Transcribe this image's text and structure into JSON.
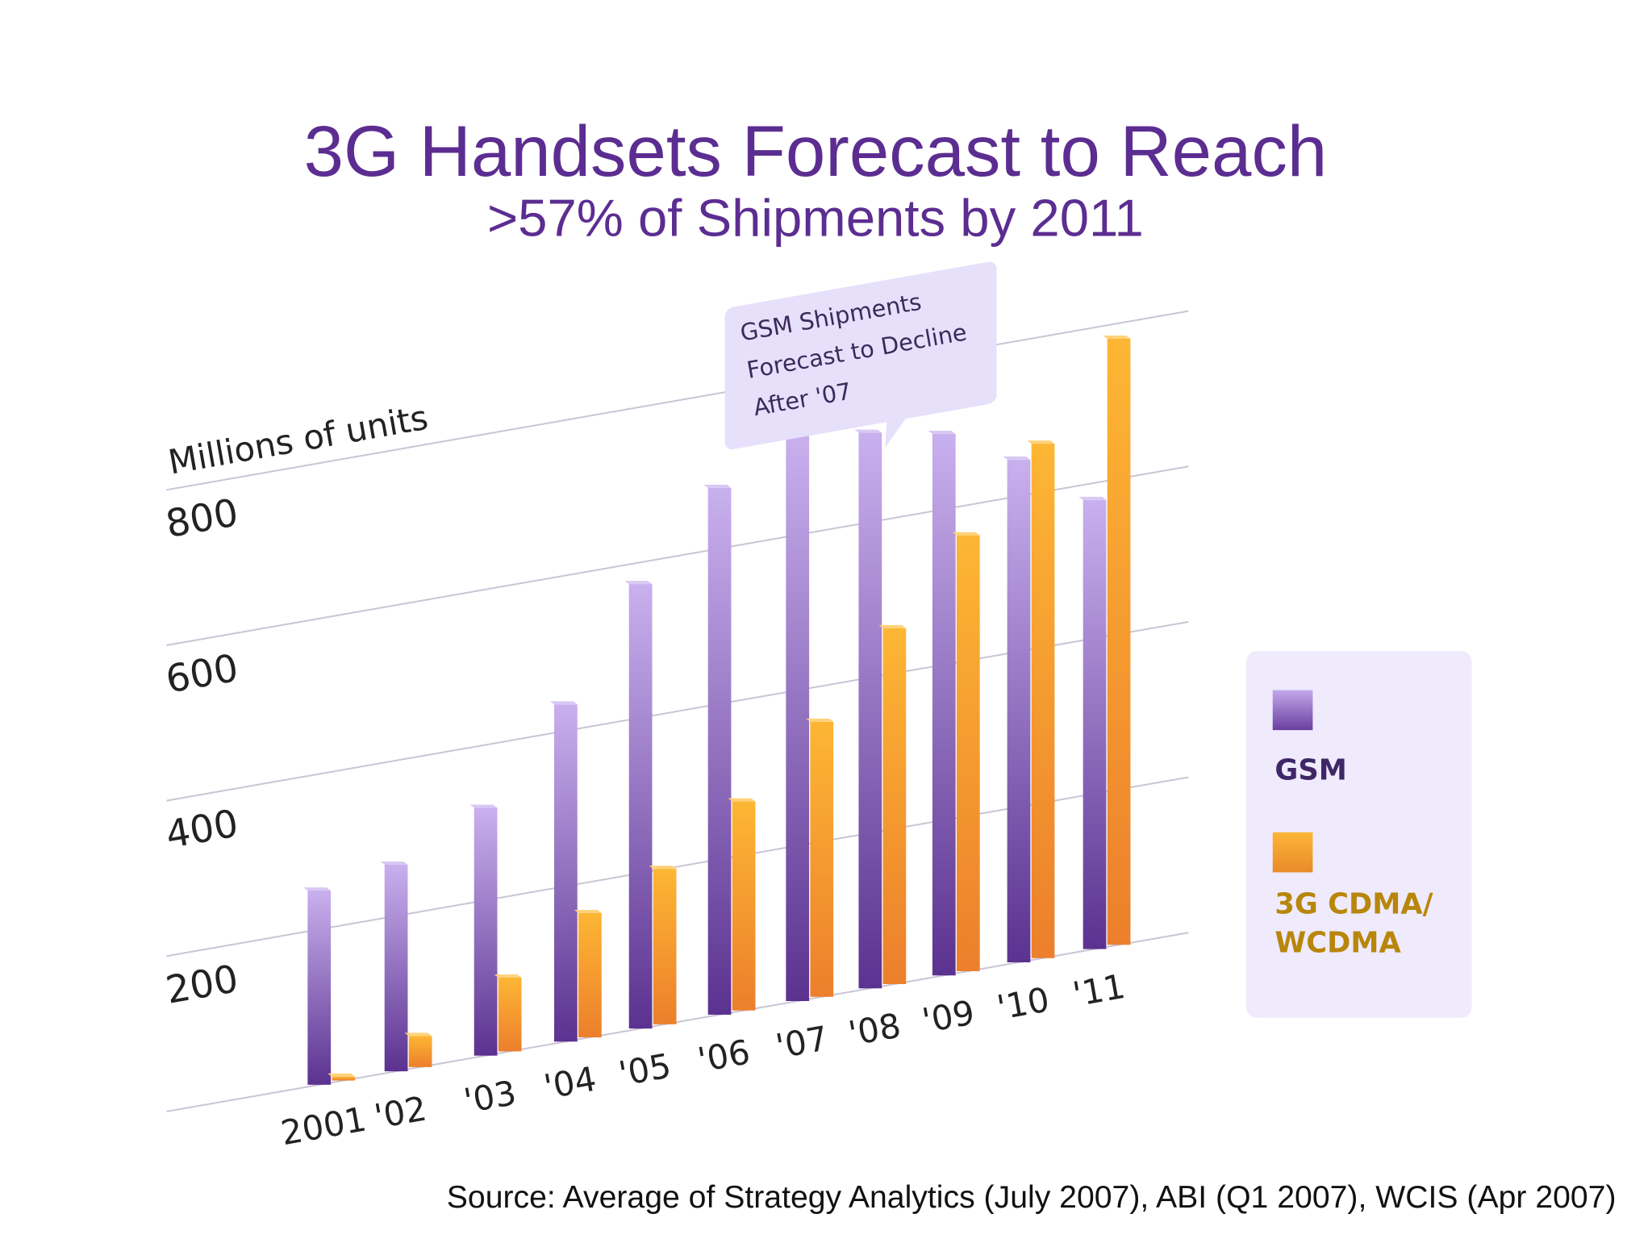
{
  "chart_data": {
    "type": "bar",
    "title": "3G Handsets Forecast to Reach",
    "subtitle": ">57% of Shipments by 2011",
    "ylabel": "Millions of units",
    "ylim": [
      0,
      800
    ],
    "yticks": [
      "200",
      "400",
      "600",
      "800"
    ],
    "categories": [
      "2001",
      "'02",
      "'03",
      "'04",
      "'05",
      "'06",
      "'07",
      "'08",
      "'09",
      "'10",
      "'11"
    ],
    "series": [
      {
        "name": "GSM",
        "color": "#8a64c0",
        "values": [
          250,
          266,
          319,
          434,
          572,
          678,
          728,
          715,
          697,
          647,
          578
        ]
      },
      {
        "name": "3G CDMA/ WCDMA",
        "color": "#f5a623",
        "values": [
          5,
          40,
          95,
          160,
          200,
          269,
          354,
          458,
          561,
          662,
          780
        ]
      }
    ],
    "annotation": [
      "GSM Shipments",
      "Forecast to Decline",
      "After '07"
    ],
    "legend": "right",
    "grid": true
  },
  "legend": {
    "gsm_label": "GSM",
    "cdma_label_1": "3G CDMA/",
    "cdma_label_2": "WCDMA"
  },
  "source": "Source: Average of Strategy Analytics (July 2007), ABI (Q1 2007), WCIS (Apr 2007)"
}
